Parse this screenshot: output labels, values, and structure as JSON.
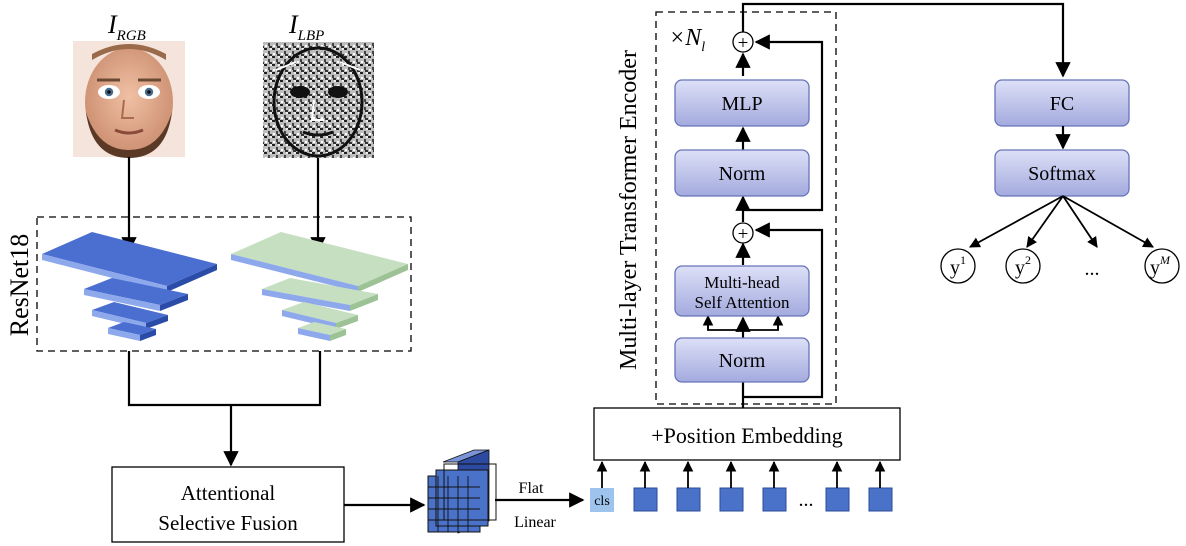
{
  "inputs": {
    "rgb": {
      "base": "I",
      "sub": "RGB"
    },
    "lbp": {
      "base": "I",
      "sub": "LBP"
    }
  },
  "backbone_label": "ResNet18",
  "fusion_label": [
    "Attentional",
    "Selective Fusion"
  ],
  "flat_label": "Flat",
  "linear_label": "Linear",
  "position_embedding_label": "+Position Embedding",
  "cls_label": "cls",
  "ellipsis": "...",
  "encoder": {
    "label": "Multi-layer Transformer Encoder",
    "repeat": {
      "base": "×N",
      "sub": "l"
    },
    "mlp": "MLP",
    "norm_top": "Norm",
    "attention": [
      "Multi-head",
      "Self Attention"
    ],
    "norm_bottom": "Norm",
    "plus": "+"
  },
  "head": {
    "fc": "FC",
    "softmax": "Softmax",
    "outputs": [
      {
        "base": "y",
        "sup": "1"
      },
      {
        "base": "y",
        "sup": "2"
      },
      {
        "base": "...",
        "sup": ""
      },
      {
        "base": "y",
        "sup": "M"
      }
    ]
  },
  "colors": {
    "rgb_feature": "#4a6fd0",
    "lbp_feature": "#c5dfc0",
    "block_fill": "#b7bde8",
    "patch": "#4a72c8"
  }
}
